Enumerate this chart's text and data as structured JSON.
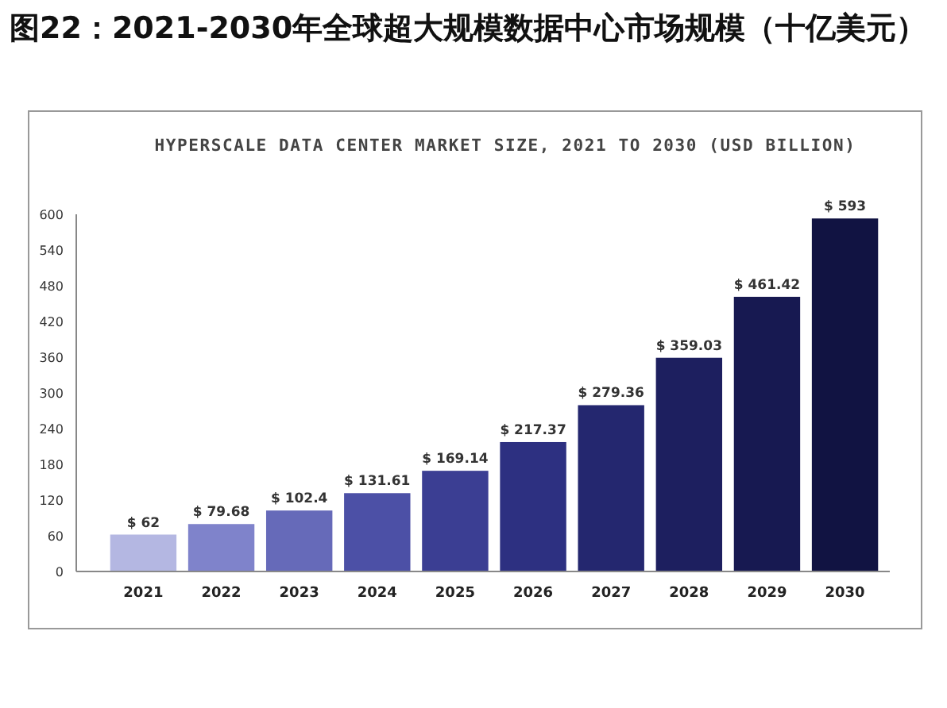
{
  "chart_data": {
    "type": "bar",
    "title": "图22：2021-2030年全球超大规模数据中心市场规模（十亿美元）",
    "subtitle": "HYPERSCALE DATA CENTER MARKET SIZE, 2021 TO 2030 (USD BILLION)",
    "categories": [
      "2021",
      "2022",
      "2023",
      "2024",
      "2025",
      "2026",
      "2027",
      "2028",
      "2029",
      "2030"
    ],
    "values": [
      62,
      79.68,
      102.4,
      131.61,
      169.14,
      217.37,
      279.36,
      359.03,
      461.42,
      593
    ],
    "value_labels": [
      "$ 62",
      "$ 79.68",
      "$ 102.4",
      "$ 131.61",
      "$ 169.14",
      "$ 217.37",
      "$ 279.36",
      "$ 359.03",
      "$ 461.42",
      "$ 593"
    ],
    "colors": [
      "#b4b7e2",
      "#7f83cb",
      "#666ab9",
      "#4c50a6",
      "#3b3e93",
      "#2d3081",
      "#24276f",
      "#1d1f5f",
      "#171951",
      "#111342"
    ],
    "ylim": [
      0,
      600
    ],
    "yticks": [
      0,
      60,
      120,
      180,
      240,
      300,
      360,
      420,
      480,
      540,
      600
    ],
    "grid": false
  }
}
